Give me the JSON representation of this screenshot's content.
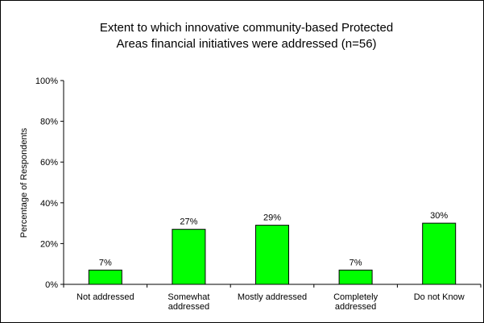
{
  "chart_data": {
    "type": "bar",
    "title_lines": [
      "Extent to which innovative community-based Protected",
      "Areas financial initiatives were addressed (n=56)"
    ],
    "ylabel": "Percentage of Respondents",
    "xlabel": "",
    "ylim": [
      0,
      100
    ],
    "yticks": [
      "0%",
      "20%",
      "40%",
      "60%",
      "80%",
      "100%"
    ],
    "categories": [
      [
        "Not addressed"
      ],
      [
        "Somewhat",
        "addressed"
      ],
      [
        "Mostly addressed"
      ],
      [
        "Completely",
        "addressed"
      ],
      [
        "Do not Know"
      ]
    ],
    "values": [
      7,
      27,
      29,
      7,
      30
    ],
    "data_labels": [
      "7%",
      "27%",
      "29%",
      "7%",
      "30%"
    ],
    "bar_color": "#00ff00",
    "grid": false,
    "legend": "none"
  }
}
